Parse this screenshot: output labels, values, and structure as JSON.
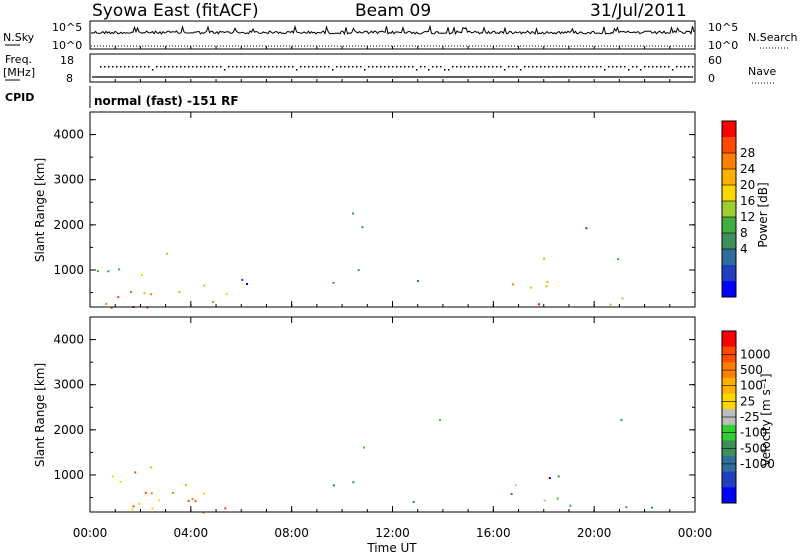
{
  "header": {
    "title": "Syowa East (fitACF)",
    "beam": "Beam 09",
    "date": "31/Jul/2011"
  },
  "top_panels": {
    "nsky_label": "N.Sky",
    "nsearch_label": "N.Search",
    "nsky_tick_top": "10^5",
    "nsky_tick_bottom": "10^0",
    "nsearch_tick_top": "10^5",
    "nsearch_tick_bottom": "10^0",
    "freq_label_1": "Freq.",
    "freq_label_2": "[MHz]",
    "freq_tick_top": "18",
    "freq_tick_bottom": "8",
    "nave_label": "Nave",
    "nave_tick_top": "60",
    "nave_tick_bottom": "0",
    "cpid_label": "CPID",
    "cpid_text": "normal (fast) -151 RF"
  },
  "chart_data": [
    {
      "type": "heatmap",
      "name": "power",
      "ylabel": "Slant Range [km]",
      "yticks": [
        "4000",
        "3000",
        "2000",
        "1000"
      ],
      "ylim": [
        180,
        4500
      ],
      "xlim": [
        0,
        24
      ],
      "colorbar_label": "Power [dB]",
      "colorbar_ticks": [
        "28",
        "24",
        "20",
        "16",
        "12",
        "8",
        "4"
      ],
      "colors": [
        "#0000ff",
        "#1f3fbf",
        "#2e6e9e",
        "#3f8f5a",
        "#3fb03f",
        "#9fcf2f",
        "#ffd700",
        "#ffb000",
        "#ff7f00",
        "#ff4a00",
        "#ff0000"
      ]
    },
    {
      "type": "heatmap",
      "name": "velocity",
      "ylabel": "Slant Range [km]",
      "yticks": [
        "4000",
        "3000",
        "2000",
        "1000"
      ],
      "ylim": [
        180,
        4500
      ],
      "xlim": [
        0,
        24
      ],
      "xlabel": "Time UT",
      "xticks": [
        "00:00",
        "04:00",
        "08:00",
        "12:00",
        "16:00",
        "20:00",
        "00:00"
      ],
      "colorbar_label": "Velocity [m s⁻¹]",
      "colorbar_ticks": [
        "1000",
        "500",
        "100",
        "25",
        "-25",
        "-100",
        "-500",
        "-1000"
      ],
      "colors": [
        "#0000ff",
        "#1f3fbf",
        "#2e6e9e",
        "#3f8f5a",
        "#33cc33",
        "#bdbdbd",
        "#ffd700",
        "#ffb000",
        "#ff7f00",
        "#ff4a00",
        "#ff0000"
      ]
    }
  ]
}
